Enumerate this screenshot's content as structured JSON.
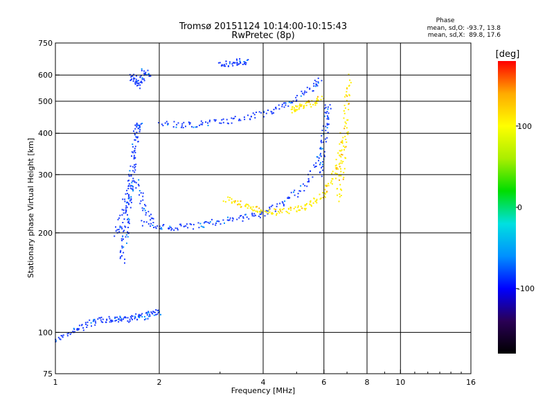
{
  "title": "Tromsø 20151124 10:14:00-10:15:43",
  "subtitle": "RwPretec (8p)",
  "phase_legend": {
    "heading": "Phase",
    "line1": "mean, sd,O: -93.7, 13.8",
    "line2": "mean, sd,X:  89.8, 17.6"
  },
  "chart_data": {
    "type": "scatter",
    "title": "Tromsø 20151124 10:14:00-10:15:43",
    "subtitle": "RwPretec (8p)",
    "xlabel": "Frequency [MHz]",
    "ylabel": "Stationary phase Virtual Height [km]",
    "x_scale": "log",
    "y_scale": "log",
    "xlim": [
      1,
      16
    ],
    "ylim": [
      75,
      750
    ],
    "x_ticks": [
      1,
      2,
      4,
      6,
      16
    ],
    "x_tick_labels": [
      "1",
      "2",
      "4",
      "6",
      "16"
    ],
    "x_gridlines": [
      2,
      4,
      6,
      8,
      10
    ],
    "x_extra_labels": [
      8,
      10
    ],
    "y_ticks": [
      75,
      100,
      200,
      300,
      400,
      500,
      600,
      750
    ],
    "y_tick_labels": [
      "75",
      "100",
      "200",
      "300",
      "400",
      "500",
      "600",
      "750"
    ],
    "y_gridlines": [
      100,
      200,
      300,
      400,
      500,
      600
    ],
    "grid": true,
    "colorbar": {
      "label": "[deg]",
      "ticks": [
        100,
        0,
        -100
      ],
      "tick_labels": [
        "100",
        "0",
        "-100"
      ],
      "range": [
        -180,
        180
      ],
      "colors": [
        "#000000",
        "#2a0055",
        "#0000ff",
        "#0090ff",
        "#00e0e0",
        "#00dd00",
        "#aaee00",
        "#ffff00",
        "#ffaa00",
        "#ff0000"
      ]
    },
    "series": [
      {
        "name": "O",
        "phase_mean": -93.7,
        "phase_sd": 13.8,
        "color": "#1a3cff",
        "traces": [
          {
            "x": [
              1.0,
              1.1,
              1.2,
              1.3,
              1.4,
              1.5,
              1.6,
              1.7,
              1.8,
              1.9,
              2.0
            ],
            "y": [
              95,
              100,
              105,
              108,
              110,
              110,
              110,
              112,
              112,
              115,
              115
            ]
          },
          {
            "x": [
              1.55,
              1.58,
              1.6,
              1.62,
              1.64,
              1.66,
              1.68,
              1.7,
              1.72,
              1.75
            ],
            "y": [
              165,
              190,
              210,
              240,
              270,
              300,
              340,
              380,
              420,
              430
            ]
          },
          {
            "x": [
              1.5,
              1.55,
              1.6,
              1.7,
              1.8,
              1.9
            ],
            "y": [
              200,
              220,
              260,
              290,
              240,
              220
            ]
          },
          {
            "x": [
              1.8,
              2.0,
              2.2,
              2.5,
              2.8,
              3.2,
              3.6,
              4.0,
              4.5,
              5.0,
              5.5,
              5.9
            ],
            "y": [
              215,
              210,
              208,
              210,
              215,
              220,
              225,
              230,
              245,
              265,
              300,
              360
            ]
          },
          {
            "x": [
              2.0,
              2.3,
              2.6,
              3.0,
              3.5,
              4.0,
              4.5,
              5.0,
              5.5,
              5.9
            ],
            "y": [
              430,
              425,
              428,
              435,
              445,
              460,
              480,
              510,
              550,
              590
            ]
          },
          {
            "x": [
              5.8,
              5.9,
              6.0,
              6.1,
              6.15
            ],
            "y": [
              300,
              350,
              400,
              450,
              500
            ]
          },
          {
            "x": [
              1.65,
              1.7,
              1.75,
              1.8,
              1.85
            ],
            "y": [
              600,
              580,
              560,
              620,
              600
            ]
          },
          {
            "x": [
              3.0,
              3.2,
              3.4,
              3.6
            ],
            "y": [
              650,
              655,
              660,
              662
            ]
          }
        ]
      },
      {
        "name": "X",
        "phase_mean": 89.8,
        "phase_sd": 17.6,
        "color": "#ffee00",
        "traces": [
          {
            "x": [
              3.1,
              3.4,
              3.7,
              4.0,
              4.4,
              4.8,
              5.2,
              5.6,
              6.0,
              6.3,
              6.6,
              6.8
            ],
            "y": [
              255,
              245,
              238,
              235,
              232,
              235,
              240,
              250,
              265,
              290,
              330,
              400
            ]
          },
          {
            "x": [
              6.6,
              6.7,
              6.8,
              6.9,
              7.0,
              7.1
            ],
            "y": [
              250,
              300,
              350,
              420,
              500,
              600
            ]
          },
          {
            "x": [
              4.8,
              5.0,
              5.3,
              5.6,
              5.9
            ],
            "y": [
              470,
              480,
              490,
              500,
              510
            ]
          }
        ]
      }
    ]
  }
}
